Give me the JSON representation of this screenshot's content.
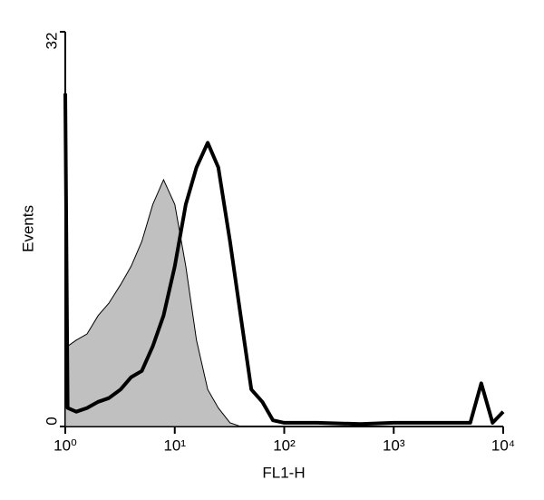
{
  "chart_data": {
    "type": "histogram-overlay",
    "xlabel": "FL1-H",
    "ylabel": "Events",
    "log_x": true,
    "xlim": [
      1,
      10000
    ],
    "xticks": [
      {
        "value": 1,
        "label": "10⁰"
      },
      {
        "value": 10,
        "label": "10¹"
      },
      {
        "value": 100,
        "label": "10²"
      },
      {
        "value": 1000,
        "label": "10³"
      },
      {
        "value": 10000,
        "label": "10⁴"
      }
    ],
    "ylim": [
      0,
      32
    ],
    "yticks": [
      0,
      32
    ],
    "x": [
      1,
      1.05,
      1.26,
      1.58,
      2,
      2.5,
      3.2,
      4,
      5,
      6.3,
      7.9,
      10,
      12.6,
      15.8,
      20,
      25,
      32,
      40,
      50,
      63,
      79,
      100,
      200,
      500,
      1000,
      2000,
      5000,
      6300,
      8000,
      10000
    ],
    "series": [
      {
        "color": "#c0c0c0",
        "values": [
          6,
          6.5,
          7,
          7.5,
          9,
          10,
          11.5,
          13,
          15,
          18,
          20,
          18,
          13,
          7,
          3,
          1.5,
          0.3,
          0,
          0,
          0,
          0,
          0,
          0,
          0,
          0,
          0,
          0,
          0,
          0,
          0
        ]
      },
      {
        "color": "#000000",
        "values": [
          27,
          1.5,
          1.2,
          1.5,
          2,
          2.3,
          3,
          4,
          4.5,
          6.5,
          9,
          13,
          18,
          21,
          23,
          21,
          15,
          9,
          3,
          2,
          0.5,
          0.3,
          0.3,
          0.2,
          0.3,
          0.3,
          0.3,
          3.5,
          0.3,
          1.2
        ]
      }
    ]
  }
}
